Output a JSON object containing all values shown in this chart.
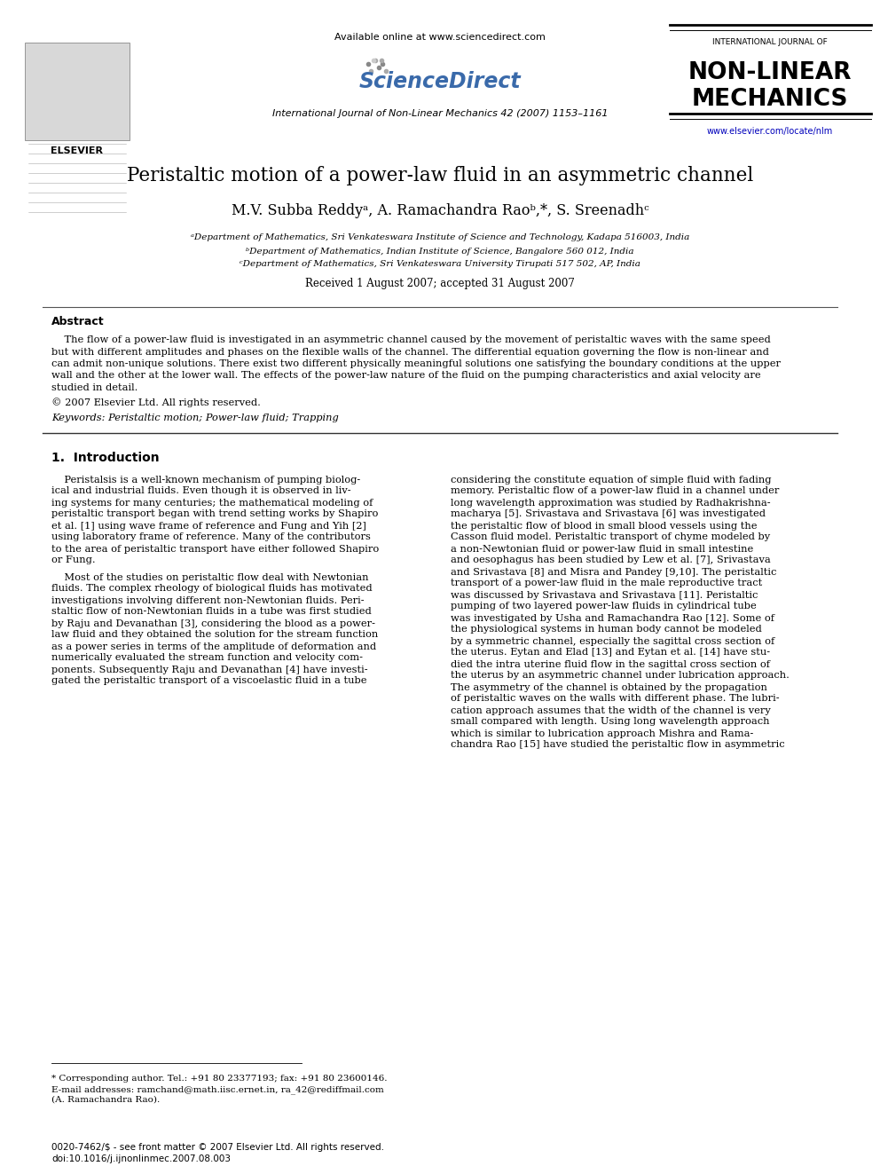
{
  "bg_color": "#ffffff",
  "title": "Peristaltic motion of a power-law fluid in an asymmetric channel",
  "authors": "M.V. Subba Reddyᵃ, A. Ramachandra Raoᵇ,*, S. Sreenadhᶜ",
  "affil_a": "ᵃDepartment of Mathematics, Sri Venkateswara Institute of Science and Technology, Kadapa 516003, India",
  "affil_b": "ᵇDepartment of Mathematics, Indian Institute of Science, Bangalore 560 012, India",
  "affil_c": "ᶜDepartment of Mathematics, Sri Venkateswara University Tirupati 517 502, AP, India",
  "received": "Received 1 August 2007; accepted 31 August 2007",
  "journal_line": "International Journal of Non-Linear Mechanics 42 (2007) 1153–1161",
  "available_online": "Available online at www.sciencedirect.com",
  "journal_name_small": "INTERNATIONAL JOURNAL OF",
  "journal_name_large1": "NON-LINEAR",
  "journal_name_large2": "MECHANICS",
  "journal_url": "www.elsevier.com/locate/nlm",
  "elsevier_text": "ELSEVIER",
  "abstract_title": "Abstract",
  "copyright": "© 2007 Elsevier Ltd. All rights reserved.",
  "keywords": "Keywords: Peristaltic motion; Power-law fluid; Trapping",
  "section1_title": "1.  Introduction",
  "footnote_corr": "* Corresponding author. Tel.: +91 80 23377193; fax: +91 80 23600146.",
  "footnote_email": "E-mail addresses: ramchand@math.iisc.ernet.in, ra_42@rediffmail.com",
  "footnote_name": "(A. Ramachandra Rao).",
  "footer_issn": "0020-7462/$ - see front matter © 2007 Elsevier Ltd. All rights reserved.",
  "footer_doi": "doi:10.1016/j.ijnonlinmec.2007.08.003",
  "abstract_lines": [
    "    The flow of a power-law fluid is investigated in an asymmetric channel caused by the movement of peristaltic waves with the same speed",
    "but with different amplitudes and phases on the flexible walls of the channel. The differential equation governing the flow is non-linear and",
    "can admit non-unique solutions. There exist two different physically meaningful solutions one satisfying the boundary conditions at the upper",
    "wall and the other at the lower wall. The effects of the power-law nature of the fluid on the pumping characteristics and axial velocity are",
    "studied in detail."
  ],
  "col1_lines_p1": [
    "    Peristalsis is a well-known mechanism of pumping biolog-",
    "ical and industrial fluids. Even though it is observed in liv-",
    "ing systems for many centuries; the mathematical modeling of",
    "peristaltic transport began with trend setting works by Shapiro",
    "et al. [1] using wave frame of reference and Fung and Yih [2]",
    "using laboratory frame of reference. Many of the contributors",
    "to the area of peristaltic transport have either followed Shapiro",
    "or Fung."
  ],
  "col1_lines_p2": [
    "    Most of the studies on peristaltic flow deal with Newtonian",
    "fluids. The complex rheology of biological fluids has motivated",
    "investigations involving different non-Newtonian fluids. Peri-",
    "staltic flow of non-Newtonian fluids in a tube was first studied",
    "by Raju and Devanathan [3], considering the blood as a power-",
    "law fluid and they obtained the solution for the stream function",
    "as a power series in terms of the amplitude of deformation and",
    "numerically evaluated the stream function and velocity com-",
    "ponents. Subsequently Raju and Devanathan [4] have investi-",
    "gated the peristaltic transport of a viscoelastic fluid in a tube"
  ],
  "col2_lines": [
    "considering the constitute equation of simple fluid with fading",
    "memory. Peristaltic flow of a power-law fluid in a channel under",
    "long wavelength approximation was studied by Radhakrishna-",
    "macharya [5]. Srivastava and Srivastava [6] was investigated",
    "the peristaltic flow of blood in small blood vessels using the",
    "Casson fluid model. Peristaltic transport of chyme modeled by",
    "a non-Newtonian fluid or power-law fluid in small intestine",
    "and oesophagus has been studied by Lew et al. [7], Srivastava",
    "and Srivastava [8] and Misra and Pandey [9,10]. The peristaltic",
    "transport of a power-law fluid in the male reproductive tract",
    "was discussed by Srivastava and Srivastava [11]. Peristaltic",
    "pumping of two layered power-law fluids in cylindrical tube",
    "was investigated by Usha and Ramachandra Rao [12]. Some of",
    "the physiological systems in human body cannot be modeled",
    "by a symmetric channel, especially the sagittal cross section of",
    "the uterus. Eytan and Elad [13] and Eytan et al. [14] have stu-",
    "died the intra uterine fluid flow in the sagittal cross section of",
    "the uterus by an asymmetric channel under lubrication approach.",
    "The asymmetry of the channel is obtained by the propagation",
    "of peristaltic waves on the walls with different phase. The lubri-",
    "cation approach assumes that the width of the channel is very",
    "small compared with length. Using long wavelength approach",
    "which is similar to lubrication approach Mishra and Rama-",
    "chandra Rao [15] have studied the peristaltic flow in asymmetric"
  ]
}
